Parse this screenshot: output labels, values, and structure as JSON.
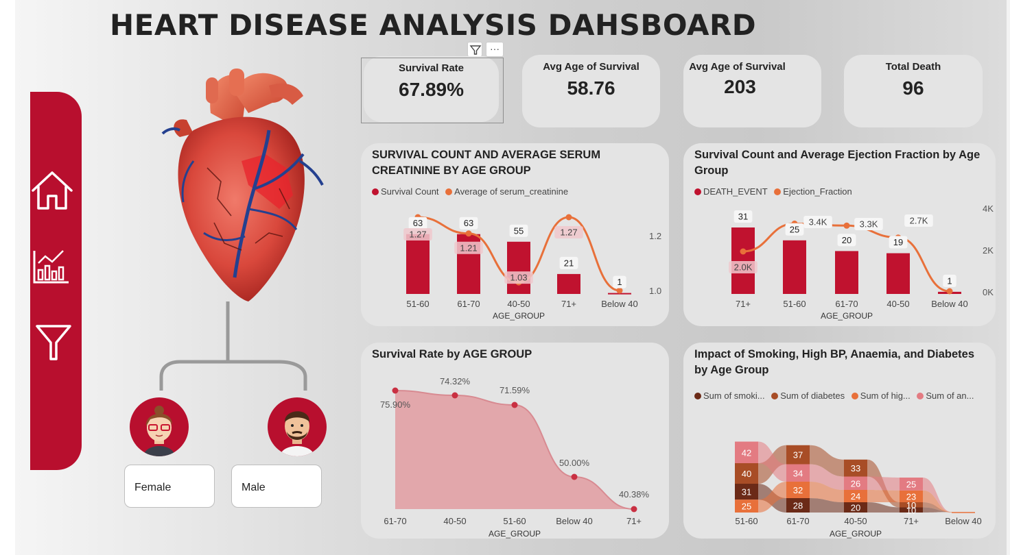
{
  "header": {
    "title": "HEART DISEASE ANALYSIS DAHSBOARD"
  },
  "sidebar": {
    "icons": [
      "home-icon",
      "chart-icon",
      "filter-icon"
    ]
  },
  "visual_header": {
    "filter_icon": "filter-icon",
    "more_label": "···"
  },
  "kpis": [
    {
      "label": "Survival Rate",
      "value": "67.89%"
    },
    {
      "label": "Avg Age of Survival",
      "value": "58.76"
    },
    {
      "label": "Avg Age of Survival",
      "value": "203"
    },
    {
      "label": "Total Death",
      "value": "96"
    }
  ],
  "slicer": {
    "female": "Female",
    "male": "Male"
  },
  "colors": {
    "brand_red": "#b80f2e",
    "orange": "#e8703a",
    "pink_area": "#e1a3a8"
  },
  "chart_data": [
    {
      "id": "survival-serum",
      "type": "bar",
      "title": "SURVIVAL COUNT AND AVERAGE SERUM CREATININE BY AGE GROUP",
      "xlabel": "AGE_GROUP",
      "categories": [
        "51-60",
        "61-70",
        "40-50",
        "71+",
        "Below 40"
      ],
      "series": [
        {
          "name": "Survival Count",
          "type": "bar",
          "values": [
            63,
            63,
            55,
            21,
            1
          ],
          "labels": [
            "63",
            "63",
            "55",
            "21",
            "1"
          ]
        },
        {
          "name": "Average of serum_creatinine",
          "type": "line",
          "values": [
            1.27,
            1.21,
            1.03,
            1.27,
            1.0
          ],
          "labels": [
            "1.27",
            "1.21",
            "1.03",
            "1.27",
            ""
          ]
        }
      ],
      "y2_ticks": [
        "1.2",
        "1.0"
      ],
      "ylim": [
        0,
        70
      ],
      "y2lim": [
        0.99,
        1.3
      ]
    },
    {
      "id": "survival-ejection",
      "type": "bar",
      "title": "Survival Count and Average Ejection Fraction by Age Group",
      "xlabel": "AGE_GROUP",
      "categories": [
        "71+",
        "51-60",
        "61-70",
        "40-50",
        "Below 40"
      ],
      "series": [
        {
          "name": "DEATH_EVENT",
          "type": "bar",
          "values": [
            31,
            25,
            20,
            19,
            1
          ],
          "labels": [
            "31",
            "25",
            "20",
            "19",
            "1"
          ]
        },
        {
          "name": "Ejection_Fraction",
          "type": "line",
          "values": [
            2000,
            3400,
            3300,
            2700,
            0
          ],
          "labels": [
            "2.0K",
            "3.4K",
            "3.3K",
            "2.7K",
            ""
          ]
        }
      ],
      "y2_ticks": [
        "4K",
        "2K",
        "0K"
      ],
      "ylim": [
        0,
        38
      ],
      "y2lim": [
        0,
        4000
      ]
    },
    {
      "id": "survival-rate",
      "type": "area",
      "title": "Survival Rate by AGE GROUP",
      "xlabel": "AGE_GROUP",
      "categories": [
        "61-70",
        "40-50",
        "51-60",
        "Below 40",
        "71+"
      ],
      "values": [
        75.9,
        74.32,
        71.59,
        50.0,
        40.38
      ],
      "labels": [
        "75.90%",
        "74.32%",
        "71.59%",
        "50.00%",
        "40.38%"
      ],
      "ylim": [
        40.38,
        75.9
      ]
    },
    {
      "id": "risk-factors",
      "type": "bar",
      "stacked": true,
      "title": "Impact of Smoking, High BP, Anaemia, and Diabetes by Age Group",
      "xlabel": "AGE_GROUP",
      "categories": [
        "51-60",
        "61-70",
        "40-50",
        "71+",
        "Below 40"
      ],
      "series": [
        {
          "name": "Sum of smoki...",
          "values": [
            31,
            28,
            20,
            10,
            0
          ]
        },
        {
          "name": "Sum of diabetes",
          "values": [
            40,
            37,
            33,
            10,
            0
          ]
        },
        {
          "name": "Sum of hig...",
          "values": [
            25,
            32,
            24,
            23,
            1
          ]
        },
        {
          "name": "Sum of an...",
          "values": [
            42,
            34,
            26,
            25,
            0
          ]
        }
      ]
    }
  ]
}
